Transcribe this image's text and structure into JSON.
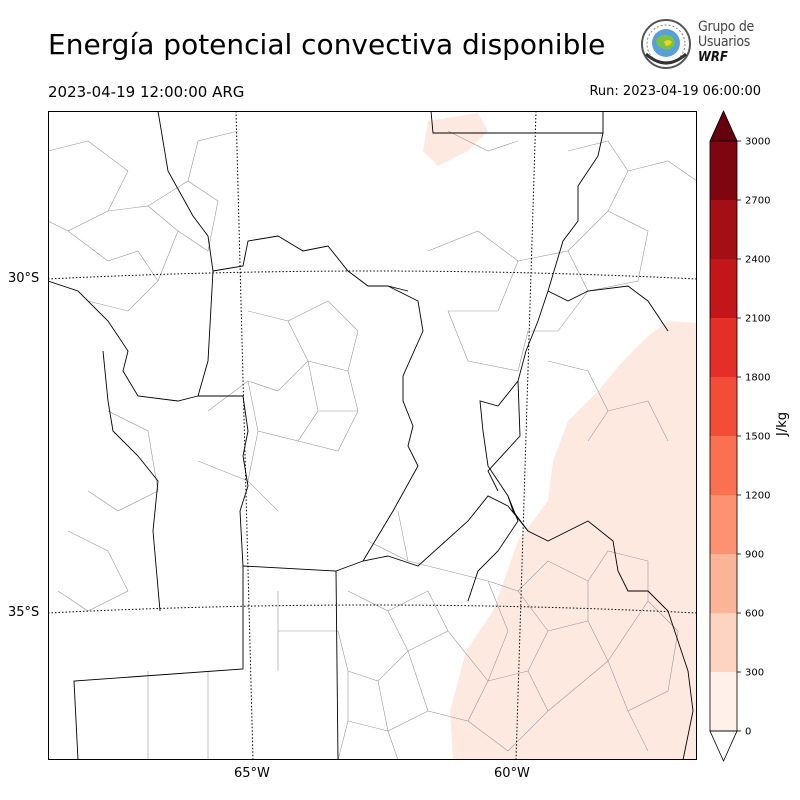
{
  "header": {
    "title": "Energía potencial convectiva disponible",
    "valid_time": "2023-04-19 12:00:00 ARG",
    "run_time": "Run: 2023-04-19 06:00:00"
  },
  "logo": {
    "line1": "Grupo de",
    "line2": "Usuarios",
    "line3": "WRF"
  },
  "map": {
    "lat_labels": [
      "30°S",
      "35°S"
    ],
    "lon_labels": [
      "65°W",
      "60°W"
    ],
    "fill_color": "#fee9e1",
    "border_color": "#000000",
    "department_color": "#999999"
  },
  "colorbar": {
    "unit": "J/kg",
    "ticks": [
      "0",
      "300",
      "600",
      "900",
      "1200",
      "1500",
      "1800",
      "2100",
      "2400",
      "2700",
      "3000"
    ],
    "colors": [
      "#fff0e9",
      "#fdd4c2",
      "#fcb499",
      "#fc9272",
      "#fb7050",
      "#f44d37",
      "#e32f27",
      "#c3161b",
      "#a30f15",
      "#7f0610"
    ],
    "over_color": "#67000d"
  }
}
